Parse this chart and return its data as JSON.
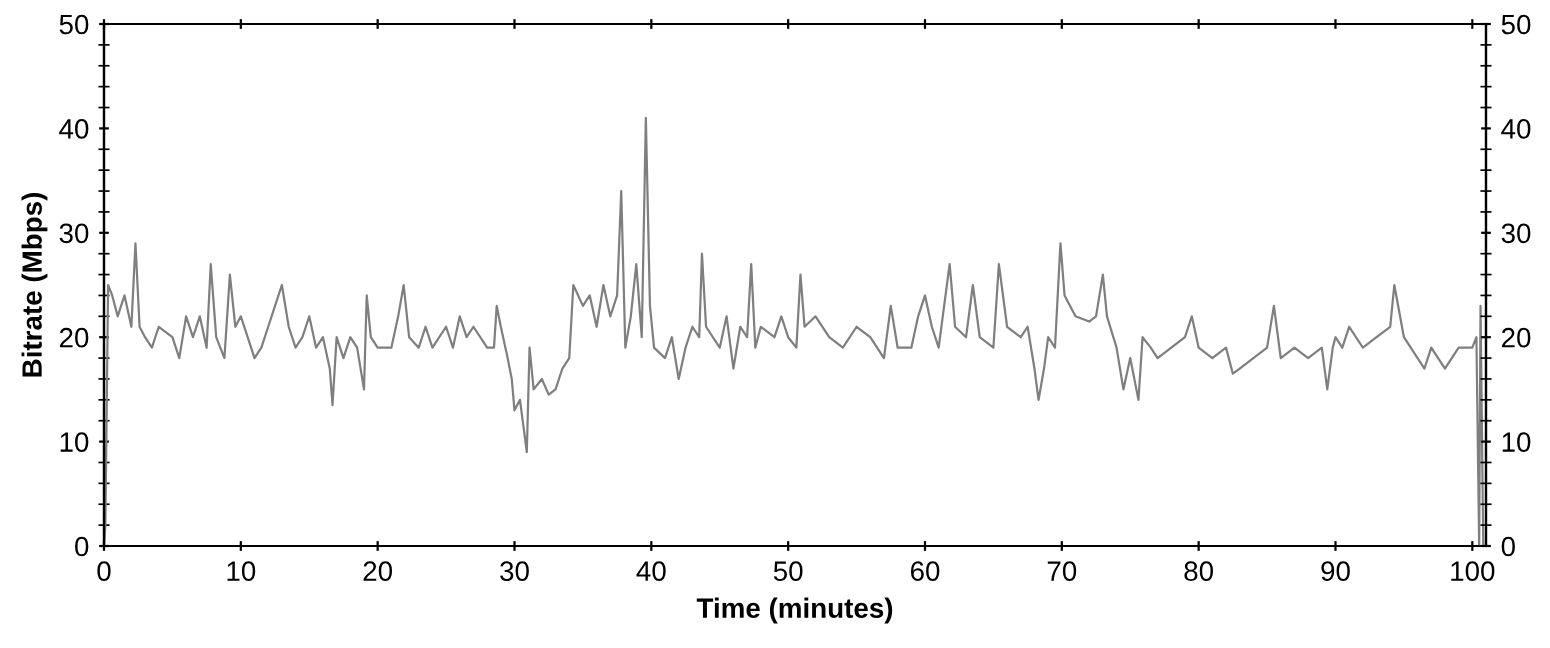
{
  "chart_data": {
    "type": "line",
    "xlabel": "Time (minutes)",
    "ylabel": "Bitrate (Mbps)",
    "xlim": [
      0,
      101
    ],
    "xticks": [
      0,
      10,
      20,
      30,
      40,
      50,
      60,
      70,
      80,
      90,
      100
    ],
    "ylim": [
      0,
      50
    ],
    "yticks": [
      0,
      10,
      20,
      30,
      40,
      50
    ],
    "y2lim": [
      0,
      50
    ],
    "y2ticks": [
      0,
      10,
      20,
      30,
      40,
      50
    ],
    "grid": false,
    "marker": "none",
    "line_style": "solid",
    "series": [
      {
        "color": "#7f7f7f",
        "x": [
          0,
          0.1,
          0.3,
          0.6,
          1,
          1.5,
          2,
          2.3,
          2.6,
          3,
          3.5,
          4,
          5,
          5.5,
          6,
          6.5,
          7,
          7.5,
          7.8,
          8.2,
          8.8,
          9.2,
          9.6,
          10,
          10.5,
          11,
          11.5,
          12,
          12.5,
          13,
          13.5,
          14,
          14.5,
          15,
          15.5,
          16,
          16.5,
          16.7,
          17,
          17.5,
          18,
          18.5,
          19,
          19.2,
          19.5,
          20,
          21,
          21.5,
          21.9,
          22.3,
          23,
          23.5,
          24,
          25,
          25.5,
          26,
          26.5,
          27,
          28,
          28.5,
          28.7,
          29,
          29.5,
          29.8,
          30,
          30.4,
          30.9,
          31.1,
          31.4,
          32,
          32.5,
          33,
          33.5,
          34,
          34.3,
          35,
          35.5,
          36,
          36.5,
          37,
          37.5,
          37.8,
          38.1,
          38.5,
          38.9,
          39.3,
          39.6,
          39.9,
          40.2,
          41,
          41.5,
          42,
          42.5,
          43,
          43.5,
          43.7,
          44,
          45,
          45.5,
          46,
          46.5,
          47,
          47.3,
          47.6,
          48,
          49,
          49.5,
          50,
          50.6,
          50.9,
          51.2,
          52,
          53,
          54,
          55,
          56,
          57,
          57.5,
          58,
          59,
          59.5,
          60,
          60.5,
          61,
          61.8,
          62.2,
          63,
          63.5,
          64,
          65,
          65.4,
          66,
          67,
          67.5,
          68,
          68.3,
          68.7,
          69,
          69.5,
          69.9,
          70.2,
          71,
          72,
          72.5,
          73,
          73.3,
          74,
          74.5,
          75,
          75.6,
          75.9,
          76.5,
          77,
          78,
          79,
          79.5,
          80,
          81,
          82,
          82.5,
          83,
          84,
          85,
          85.5,
          86,
          87,
          88,
          89,
          89.4,
          89.8,
          90,
          90.5,
          91,
          92,
          93,
          94,
          94.3,
          95,
          96,
          96.5,
          97,
          97.5,
          98,
          98.5,
          99,
          99.5,
          100,
          100.3,
          100.5,
          100.6,
          100.8
        ],
        "values": [
          0,
          2,
          25,
          24,
          22,
          24,
          21,
          29,
          21,
          20,
          19,
          21,
          20,
          18,
          22,
          20,
          22,
          19,
          27,
          20,
          18,
          26,
          21,
          22,
          20,
          18,
          19,
          21,
          23,
          25,
          21,
          19,
          20,
          22,
          19,
          20,
          17,
          13.5,
          20,
          18,
          20,
          19,
          15,
          24,
          20,
          19,
          19,
          22,
          25,
          20,
          19,
          21,
          19,
          21,
          19,
          22,
          20,
          21,
          19,
          19,
          23,
          21,
          18,
          16,
          13,
          14,
          9,
          19,
          15,
          16,
          14.5,
          15,
          17,
          18,
          25,
          23,
          24,
          21,
          25,
          22,
          24,
          34,
          19,
          22,
          27,
          20,
          41,
          23,
          19,
          18,
          20,
          16,
          19,
          21,
          20,
          28,
          21,
          19,
          22,
          17,
          21,
          20,
          27,
          19,
          21,
          20,
          22,
          20,
          19,
          26,
          21,
          22,
          20,
          19,
          21,
          20,
          18,
          23,
          19,
          19,
          22,
          24,
          21,
          19,
          27,
          21,
          20,
          25,
          20,
          19,
          27,
          21,
          20,
          21,
          17,
          14,
          17,
          20,
          19,
          29,
          24,
          22,
          21.5,
          22,
          26,
          22,
          19,
          15,
          18,
          14,
          20,
          19,
          18,
          19,
          20,
          22,
          19,
          18,
          19,
          16.5,
          17,
          18,
          19,
          23,
          18,
          19,
          18,
          19,
          15,
          19,
          20,
          19,
          21,
          19,
          20,
          21,
          25,
          20,
          18,
          17,
          19,
          18,
          17,
          18,
          19,
          19,
          19,
          20,
          0,
          23,
          0
        ]
      }
    ]
  }
}
